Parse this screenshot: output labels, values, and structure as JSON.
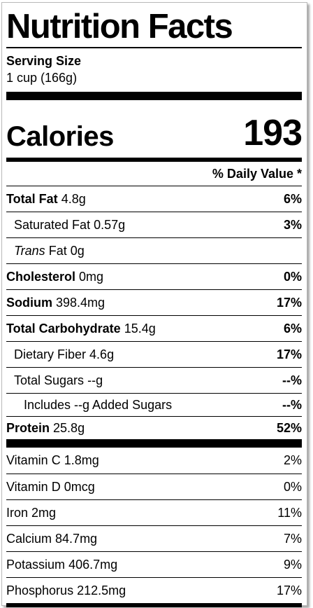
{
  "title": "Nutrition Facts",
  "serving": {
    "label": "Serving Size",
    "size": "1 cup (166g)"
  },
  "calories": {
    "label": "Calories",
    "value": "193"
  },
  "daily_value_header": "% Daily Value *",
  "nutrients": [
    {
      "name": "Total Fat",
      "amount": "4.8g",
      "dv": "6%"
    },
    {
      "name": "Saturated Fat",
      "amount": "0.57g",
      "dv": "3%"
    },
    {
      "name_italic": "Trans",
      "name": "Fat",
      "amount": "0g",
      "dv": ""
    },
    {
      "name": "Cholesterol",
      "amount": "0mg",
      "dv": "0%"
    },
    {
      "name": "Sodium",
      "amount": "398.4mg",
      "dv": "17%"
    },
    {
      "name": "Total Carbohydrate",
      "amount": "15.4g",
      "dv": "6%"
    },
    {
      "name": "Dietary Fiber",
      "amount": "4.6g",
      "dv": "17%"
    },
    {
      "name": "Total Sugars",
      "amount": "--g",
      "dv": "--%"
    },
    {
      "name": "Includes --g Added Sugars",
      "dv": "--%"
    },
    {
      "name": "Protein",
      "amount": "25.8g",
      "dv": "52%"
    }
  ],
  "vitamins": [
    {
      "name": "Vitamin C",
      "amount": "1.8mg",
      "dv": "2%"
    },
    {
      "name": "Vitamin D",
      "amount": "0mcg",
      "dv": "0%"
    },
    {
      "name": "Iron",
      "amount": "2mg",
      "dv": "11%"
    },
    {
      "name": "Calcium",
      "amount": "84.7mg",
      "dv": "7%"
    },
    {
      "name": "Potassium",
      "amount": "406.7mg",
      "dv": "9%"
    },
    {
      "name": "Phosphorus",
      "amount": "212.5mg",
      "dv": "17%"
    }
  ]
}
